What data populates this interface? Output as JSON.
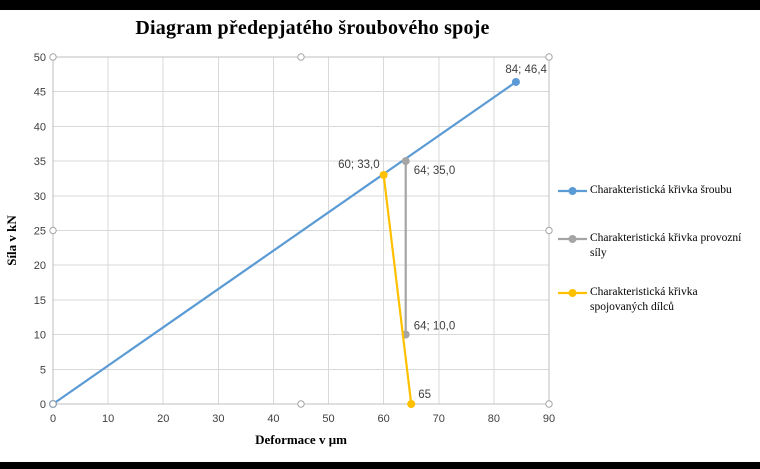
{
  "chart_data": {
    "type": "line",
    "title": "Diagram předepjatého šroubového spoje",
    "xlabel": "Deformace v μm",
    "ylabel": "Síla v kN",
    "xlim": [
      0,
      90
    ],
    "ylim": [
      0,
      50
    ],
    "xticks": [
      0,
      10,
      20,
      30,
      40,
      50,
      60,
      70,
      80,
      90
    ],
    "yticks": [
      0,
      5,
      10,
      15,
      20,
      25,
      30,
      35,
      40,
      45,
      50
    ],
    "grid": true,
    "legend_position": "right",
    "series": [
      {
        "name": "Charakteristická křivka šroubu",
        "color": "#5B9BD5",
        "points": [
          {
            "x": 0,
            "y": 0,
            "label": "",
            "label_anchor": "start",
            "label_dx": 0,
            "label_dy": 0
          },
          {
            "x": 84,
            "y": 46.4,
            "label": "84; 46,4",
            "label_anchor": "end",
            "label_dx": 31,
            "label_dy": -9
          }
        ]
      },
      {
        "name": "Charakteristická křivka provozní síly",
        "color": "#A5A5A5",
        "points": [
          {
            "x": 64,
            "y": 35.0,
            "label": "64; 35,0",
            "label_anchor": "start",
            "label_dx": 8,
            "label_dy": 13
          },
          {
            "x": 64,
            "y": 10.0,
            "label": "64; 10,0",
            "label_anchor": "start",
            "label_dx": 8,
            "label_dy": -5
          }
        ]
      },
      {
        "name": "Charakteristická křivka spojovaných dílců",
        "color": "#FFC000",
        "points": [
          {
            "x": 60,
            "y": 33.0,
            "label": "60; 33,0",
            "label_anchor": "end",
            "label_dx": -4,
            "label_dy": -7
          },
          {
            "x": 65,
            "y": 0,
            "label": "65",
            "label_anchor": "start",
            "label_dx": 7,
            "label_dy": -6
          }
        ]
      }
    ],
    "colors": {
      "gridline": "#D9D9D9",
      "axis": "#BFBFBF",
      "tick_label": "#404040",
      "data_label": "#404040",
      "title": "#000000",
      "handle_stroke": "#A6A6A6",
      "frame": "#000000"
    }
  }
}
